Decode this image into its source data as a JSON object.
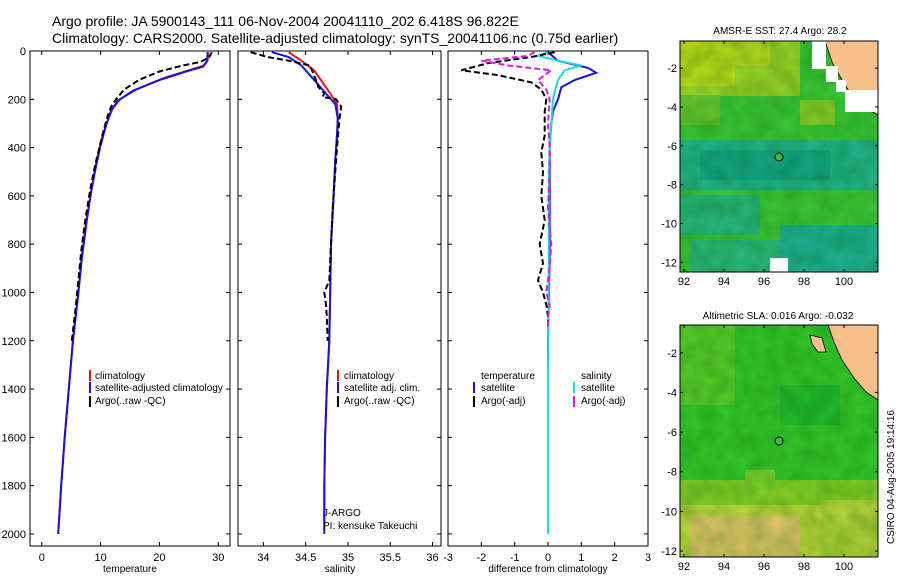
{
  "title_line1": "Argo profile: JA 5900143_111 06-Nov-2004 20041110_202 6.418S 96.822E",
  "title_line2": "Climatology: CARS2000. Satellite-adjusted climatology: synTS_20041106.nc (0.75d earlier)",
  "footer_credit": "CSIRO 04-Aug-2005 19:14:16",
  "colors": {
    "climatology": "#e8161a",
    "satellite": "#1414e0",
    "argo": "#000000",
    "salinity_satellite": "#1ad8e8",
    "argo_salinity_adj": "#e01ae0",
    "land": "#f7bf8c",
    "map_green": "#33cc33",
    "map_teal": "#1fb89a",
    "map_yellow": "#c8e01a"
  },
  "chart_data": [
    {
      "type": "line",
      "name": "temperature-profile",
      "xlabel": "temperature",
      "xlim": [
        -2,
        32
      ],
      "xticks": [
        0,
        10,
        20,
        30
      ],
      "ylim": [
        0,
        2050
      ],
      "yticks": [
        0,
        200,
        400,
        600,
        800,
        1000,
        1200,
        1400,
        1600,
        1800,
        2000
      ],
      "legend": [
        "climatology",
        "satellite-adjusted climatology",
        "Argo(..raw -QC)"
      ],
      "series": [
        {
          "name": "climatology",
          "points": [
            [
              28.3,
              5
            ],
            [
              28.2,
              40
            ],
            [
              27.6,
              60
            ],
            [
              25,
              80
            ],
            [
              21,
              110
            ],
            [
              16,
              160
            ],
            [
              13.3,
              200
            ],
            [
              12,
              240
            ],
            [
              11,
              300
            ],
            [
              10,
              380
            ],
            [
              9.2,
              470
            ],
            [
              8.5,
              570
            ],
            [
              7.6,
              700
            ],
            [
              6.8,
              850
            ],
            [
              6.2,
              1000
            ],
            [
              5.3,
              1200
            ],
            [
              4.6,
              1400
            ],
            [
              3.9,
              1600
            ],
            [
              3.3,
              1800
            ],
            [
              2.8,
              2000
            ]
          ]
        },
        {
          "name": "satellite-adjusted climatology",
          "points": [
            [
              28.2,
              5
            ],
            [
              28.1,
              40
            ],
            [
              27.4,
              65
            ],
            [
              24.5,
              85
            ],
            [
              20,
              120
            ],
            [
              15.5,
              165
            ],
            [
              13,
              205
            ],
            [
              11.8,
              245
            ],
            [
              10.9,
              310
            ],
            [
              10,
              390
            ],
            [
              9.2,
              480
            ],
            [
              8.4,
              580
            ],
            [
              7.6,
              710
            ],
            [
              6.8,
              860
            ],
            [
              6.2,
              1010
            ],
            [
              5.3,
              1200
            ],
            [
              4.6,
              1400
            ],
            [
              3.9,
              1600
            ],
            [
              3.3,
              1800
            ],
            [
              2.8,
              2000
            ]
          ]
        },
        {
          "name": "Argo(..raw -QC)",
          "points": [
            [
              28.9,
              5
            ],
            [
              28.5,
              25
            ],
            [
              27,
              45
            ],
            [
              24,
              60
            ],
            [
              20,
              85
            ],
            [
              16.5,
              120
            ],
            [
              14,
              160
            ],
            [
              12.8,
              195
            ],
            [
              11.8,
              230
            ],
            [
              11.2,
              270
            ],
            [
              10.5,
              330
            ],
            [
              9.8,
              400
            ],
            [
              9,
              480
            ],
            [
              8.2,
              580
            ],
            [
              7.4,
              700
            ],
            [
              6.7,
              830
            ],
            [
              6.2,
              960
            ],
            [
              5.6,
              1100
            ],
            [
              5.1,
              1200
            ]
          ]
        }
      ]
    },
    {
      "type": "line",
      "name": "salinity-profile",
      "xlabel": "salinity",
      "xlim": [
        33.7,
        36.1
      ],
      "xticks": [
        34,
        34.5,
        35,
        35.5,
        36
      ],
      "xticklabels": [
        "34",
        "34.5",
        "35",
        "35.5",
        "36"
      ],
      "ylim": [
        0,
        2050
      ],
      "legend": [
        "climatology",
        "satellite adj. clim.",
        "Argo(..raw -QC)"
      ],
      "annotations": [
        "J-ARGO",
        "PI: kensuke Takeuchi"
      ],
      "series": [
        {
          "name": "climatology",
          "points": [
            [
              34.3,
              5
            ],
            [
              34.45,
              40
            ],
            [
              34.6,
              80
            ],
            [
              34.68,
              120
            ],
            [
              34.78,
              170
            ],
            [
              34.87,
              220
            ],
            [
              34.88,
              280
            ],
            [
              34.87,
              350
            ],
            [
              34.85,
              450
            ],
            [
              34.83,
              600
            ],
            [
              34.8,
              800
            ],
            [
              34.79,
              1000
            ],
            [
              34.78,
              1200
            ],
            [
              34.75,
              1400
            ],
            [
              34.73,
              1600
            ],
            [
              34.72,
              1800
            ],
            [
              34.72,
              1950
            ]
          ]
        },
        {
          "name": "satellite adj. clim.",
          "points": [
            [
              34.1,
              5
            ],
            [
              34.3,
              25
            ],
            [
              34.45,
              60
            ],
            [
              34.55,
              100
            ],
            [
              34.65,
              140
            ],
            [
              34.75,
              180
            ],
            [
              34.85,
              220
            ],
            [
              34.88,
              280
            ],
            [
              34.87,
              350
            ],
            [
              34.85,
              450
            ],
            [
              34.83,
              600
            ],
            [
              34.8,
              800
            ],
            [
              34.79,
              1000
            ],
            [
              34.78,
              1200
            ],
            [
              34.75,
              1400
            ],
            [
              34.73,
              1600
            ],
            [
              34.72,
              1800
            ],
            [
              34.72,
              2000
            ]
          ]
        },
        {
          "name": "Argo(..raw -QC)",
          "points": [
            [
              33.85,
              5
            ],
            [
              34.05,
              25
            ],
            [
              34.3,
              40
            ],
            [
              34.55,
              60
            ],
            [
              34.6,
              100
            ],
            [
              34.65,
              150
            ],
            [
              34.72,
              175
            ],
            [
              34.7,
              190
            ],
            [
              34.86,
              200
            ],
            [
              34.92,
              230
            ],
            [
              34.9,
              280
            ],
            [
              34.88,
              360
            ],
            [
              34.86,
              450
            ],
            [
              34.84,
              550
            ],
            [
              34.82,
              650
            ],
            [
              34.8,
              800
            ],
            [
              34.78,
              950
            ],
            [
              34.72,
              1000
            ],
            [
              34.74,
              1050
            ],
            [
              34.75,
              1100
            ],
            [
              34.76,
              1200
            ]
          ]
        }
      ]
    },
    {
      "type": "line",
      "name": "difference-profile",
      "xlabel": "difference from climatology",
      "xlim": [
        -3,
        3
      ],
      "xticks": [
        -3,
        -2,
        -1,
        0,
        1,
        2,
        3
      ],
      "ylim": [
        0,
        2050
      ],
      "legend_left": [
        "temperature",
        "satellite",
        "Argo(-adj)"
      ],
      "legend_right": [
        "salinity",
        "satellite",
        "Argo(-adj)"
      ],
      "series": [
        {
          "name": "temperature satellite",
          "points": [
            [
              0,
              5
            ],
            [
              0.3,
              40
            ],
            [
              1.2,
              70
            ],
            [
              1.45,
              90
            ],
            [
              0.8,
              120
            ],
            [
              0.4,
              150
            ],
            [
              0.3,
              200
            ],
            [
              0.15,
              250
            ],
            [
              0.1,
              300
            ],
            [
              0.05,
              400
            ],
            [
              0.05,
              500
            ],
            [
              0.05,
              600
            ],
            [
              0.05,
              800
            ],
            [
              0.03,
              1000
            ],
            [
              0,
              1200
            ],
            [
              0,
              1400
            ],
            [
              0,
              1600
            ],
            [
              0,
              1800
            ]
          ]
        },
        {
          "name": "salinity satellite",
          "points": [
            [
              0,
              5
            ],
            [
              -0.3,
              20
            ],
            [
              0.3,
              40
            ],
            [
              1,
              60
            ],
            [
              0.5,
              80
            ],
            [
              0.3,
              120
            ],
            [
              0.2,
              170
            ],
            [
              0.15,
              200
            ],
            [
              0.1,
              300
            ],
            [
              0.05,
              400
            ],
            [
              0.02,
              500
            ],
            [
              0.02,
              700
            ],
            [
              0.02,
              1000
            ],
            [
              0,
              1300
            ],
            [
              0,
              1600
            ],
            [
              0,
              2000
            ]
          ]
        },
        {
          "name": "temperature Argo(-adj)",
          "points": [
            [
              0.2,
              5
            ],
            [
              -0.5,
              25
            ],
            [
              -1.8,
              50
            ],
            [
              -2.6,
              80
            ],
            [
              -1.5,
              100
            ],
            [
              -0.5,
              130
            ],
            [
              -0.2,
              160
            ],
            [
              -0.05,
              200
            ],
            [
              -0.1,
              250
            ],
            [
              -0.1,
              350
            ],
            [
              -0.2,
              420
            ],
            [
              -0.15,
              500
            ],
            [
              -0.2,
              600
            ],
            [
              -0.1,
              700
            ],
            [
              -0.25,
              800
            ],
            [
              -0.15,
              880
            ],
            [
              -0.3,
              950
            ],
            [
              -0.15,
              1000
            ],
            [
              -0.05,
              1050
            ],
            [
              0,
              1100
            ],
            [
              0,
              1150
            ]
          ]
        },
        {
          "name": "salinity Argo(-adj)",
          "points": [
            [
              -0.4,
              5
            ],
            [
              -0.6,
              20
            ],
            [
              -2,
              40
            ],
            [
              -1.2,
              60
            ],
            [
              0.1,
              80
            ],
            [
              -0.3,
              120
            ],
            [
              -0.05,
              160
            ],
            [
              0.05,
              200
            ],
            [
              0,
              300
            ],
            [
              0.05,
              400
            ],
            [
              0.05,
              500
            ],
            [
              0,
              650
            ],
            [
              0.1,
              800
            ],
            [
              0.05,
              900
            ],
            [
              -0.05,
              1000
            ],
            [
              0.05,
              1050
            ],
            [
              0,
              1100
            ],
            [
              0,
              1150
            ]
          ]
        }
      ]
    },
    {
      "type": "heatmap",
      "name": "sst-map",
      "title": "AMSR-E SST: 27.4  Argo: 28.2",
      "xlim": [
        91.8,
        101.7
      ],
      "ylim": [
        -12.5,
        -0.6
      ],
      "xticks": [
        92,
        94,
        96,
        98,
        100
      ],
      "yticks": [
        -2,
        -4,
        -6,
        -8,
        -10,
        -12
      ],
      "profile_location": [
        96.822,
        -6.418
      ]
    },
    {
      "type": "heatmap",
      "name": "sla-map",
      "title": "Altimetric SLA: 0.016  Argo: -0.032",
      "xlim": [
        91.8,
        101.7
      ],
      "ylim": [
        -12.3,
        -0.6
      ],
      "xticks": [
        92,
        94,
        96,
        98,
        100
      ],
      "yticks": [
        -2,
        -4,
        -6,
        -8,
        -10,
        -12
      ],
      "profile_location": [
        96.822,
        -6.418
      ]
    }
  ]
}
